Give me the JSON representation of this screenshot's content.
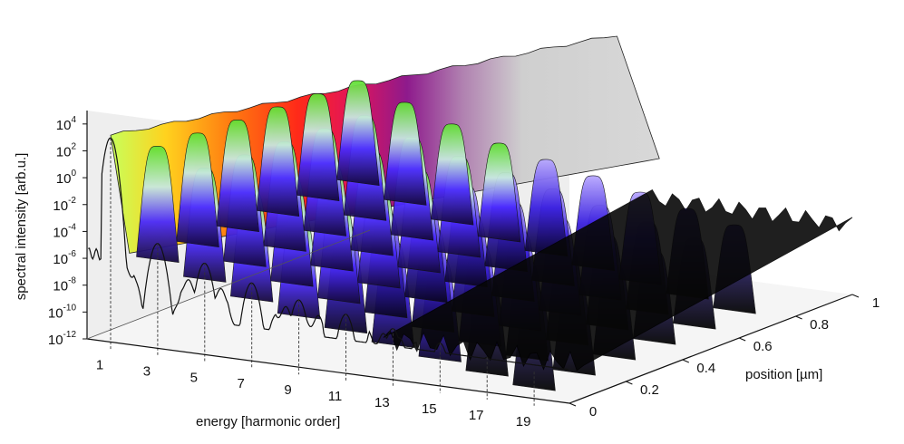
{
  "chart_data": {
    "type": "area",
    "title": "",
    "xlabel": "energy [harmonic order]",
    "ylabel": "position [µm]",
    "zlabel": "spectral intensity [arb.u.]",
    "z_scale": "log",
    "x_ticks": [
      1,
      3,
      5,
      7,
      9,
      11,
      13,
      15,
      17,
      19
    ],
    "y_ticks": [
      "0",
      "0.2",
      "0.4",
      "0.6",
      "0.8",
      "1"
    ],
    "z_ticks": [
      {
        "base": "10",
        "exp": "4",
        "value": 10000
      },
      {
        "base": "10",
        "exp": "2",
        "value": 100
      },
      {
        "base": "10",
        "exp": "0",
        "value": 1
      },
      {
        "base": "10",
        "exp": "-2",
        "value": 0.01
      },
      {
        "base": "10",
        "exp": "-4",
        "value": 0.0001
      },
      {
        "base": "10",
        "exp": "-6",
        "value": 1e-06
      },
      {
        "base": "10",
        "exp": "-8",
        "value": 1e-08
      },
      {
        "base": "10",
        "exp": "-10",
        "value": 1e-10
      },
      {
        "base": "10",
        "exp": "-12",
        "value": 1e-12
      }
    ],
    "xlim": [
      0,
      20.5
    ],
    "ylim": [
      0,
      1
    ],
    "zlim_exponent": [
      -12,
      5
    ],
    "harmonic_peak_exponents": [
      {
        "order": 1,
        "value_exponent": 3.2
      },
      {
        "order": 3,
        "value_exponent": -4.2
      },
      {
        "order": 5,
        "value_exponent": -5.2
      },
      {
        "order": 7,
        "value_exponent": -6.2
      },
      {
        "order": 9,
        "value_exponent": -7.0
      },
      {
        "order": 11,
        "value_exponent": -7.6
      },
      {
        "order": 13,
        "value_exponent": -8.2
      },
      {
        "order": 15,
        "value_exponent": -8.8
      },
      {
        "order": 17,
        "value_exponent": -9.4
      },
      {
        "order": 19,
        "value_exponent": -10.0
      }
    ],
    "grid": false,
    "legend": "none"
  }
}
